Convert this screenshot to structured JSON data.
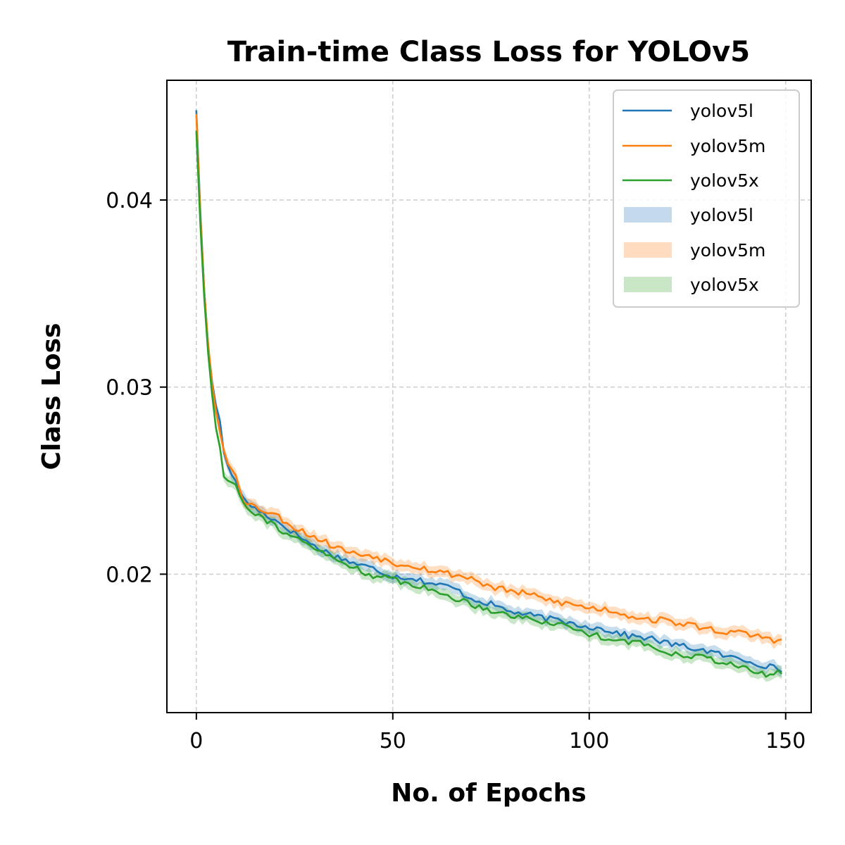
{
  "chart_data": {
    "type": "line",
    "title": "Train-time Class Loss for YOLOv5",
    "xlabel": "No. of Epochs",
    "ylabel": "Class Loss",
    "xlim": [
      -7.5,
      156.5
    ],
    "ylim": [
      0.0126,
      0.0464
    ],
    "xticks": [
      0,
      50,
      100,
      150
    ],
    "xtick_labels": [
      "0",
      "50",
      "100",
      "150"
    ],
    "yticks": [
      0.02,
      0.03,
      0.04
    ],
    "ytick_labels": [
      "0.02",
      "0.03",
      "0.04"
    ],
    "grid": true,
    "legend_position": "top-right",
    "band_width": 0.00035,
    "series": [
      {
        "name": "yolov5l",
        "color": "#1f77b4",
        "anchors": [
          [
            0,
            0.0448
          ],
          [
            1,
            0.0395
          ],
          [
            2,
            0.0352
          ],
          [
            3,
            0.0322
          ],
          [
            4,
            0.0303
          ],
          [
            5,
            0.029
          ],
          [
            6,
            0.0282
          ],
          [
            7,
            0.0265
          ],
          [
            8,
            0.0258
          ],
          [
            9,
            0.0253
          ],
          [
            10,
            0.025
          ],
          [
            12,
            0.024
          ],
          [
            15,
            0.0235
          ],
          [
            20,
            0.0229
          ],
          [
            25,
            0.0222
          ],
          [
            30,
            0.0215
          ],
          [
            35,
            0.021
          ],
          [
            40,
            0.0206
          ],
          [
            45,
            0.0203
          ],
          [
            50,
            0.0199
          ],
          [
            55,
            0.0198
          ],
          [
            60,
            0.0195
          ],
          [
            65,
            0.0193
          ],
          [
            70,
            0.0187
          ],
          [
            75,
            0.0184
          ],
          [
            80,
            0.018
          ],
          [
            85,
            0.0178
          ],
          [
            90,
            0.0176
          ],
          [
            95,
            0.0174
          ],
          [
            100,
            0.0172
          ],
          [
            105,
            0.017
          ],
          [
            110,
            0.0167
          ],
          [
            115,
            0.0166
          ],
          [
            120,
            0.0163
          ],
          [
            125,
            0.0161
          ],
          [
            130,
            0.0159
          ],
          [
            135,
            0.0156
          ],
          [
            140,
            0.0154
          ],
          [
            145,
            0.0151
          ],
          [
            149,
            0.0149
          ]
        ]
      },
      {
        "name": "yolov5m",
        "color": "#ff7f0e",
        "anchors": [
          [
            0,
            0.0446
          ],
          [
            1,
            0.0393
          ],
          [
            2,
            0.0352
          ],
          [
            3,
            0.0323
          ],
          [
            4,
            0.0302
          ],
          [
            5,
            0.0287
          ],
          [
            6,
            0.0276
          ],
          [
            7,
            0.0266
          ],
          [
            8,
            0.0259
          ],
          [
            9,
            0.0256
          ],
          [
            10,
            0.0253
          ],
          [
            12,
            0.024
          ],
          [
            15,
            0.0236
          ],
          [
            20,
            0.0232
          ],
          [
            25,
            0.0225
          ],
          [
            30,
            0.022
          ],
          [
            35,
            0.0215
          ],
          [
            40,
            0.0211
          ],
          [
            45,
            0.021
          ],
          [
            50,
            0.0206
          ],
          [
            55,
            0.0205
          ],
          [
            60,
            0.0202
          ],
          [
            65,
            0.02
          ],
          [
            70,
            0.0198
          ],
          [
            75,
            0.0193
          ],
          [
            80,
            0.0191
          ],
          [
            85,
            0.0189
          ],
          [
            90,
            0.0186
          ],
          [
            95,
            0.0184
          ],
          [
            100,
            0.0182
          ],
          [
            105,
            0.0181
          ],
          [
            110,
            0.0178
          ],
          [
            115,
            0.0176
          ],
          [
            120,
            0.0175
          ],
          [
            125,
            0.0173
          ],
          [
            130,
            0.0171
          ],
          [
            135,
            0.0169
          ],
          [
            140,
            0.0168
          ],
          [
            145,
            0.0166
          ],
          [
            149,
            0.0164
          ]
        ]
      },
      {
        "name": "yolov5x",
        "color": "#2ca02c",
        "anchors": [
          [
            0,
            0.0437
          ],
          [
            1,
            0.0388
          ],
          [
            2,
            0.0348
          ],
          [
            3,
            0.0318
          ],
          [
            4,
            0.0296
          ],
          [
            5,
            0.0278
          ],
          [
            6,
            0.0268
          ],
          [
            7,
            0.0252
          ],
          [
            8,
            0.025
          ],
          [
            9,
            0.0249
          ],
          [
            10,
            0.0248
          ],
          [
            12,
            0.0238
          ],
          [
            15,
            0.0233
          ],
          [
            20,
            0.0226
          ],
          [
            25,
            0.0219
          ],
          [
            30,
            0.0214
          ],
          [
            35,
            0.0208
          ],
          [
            40,
            0.0204
          ],
          [
            45,
            0.0199
          ],
          [
            50,
            0.0197
          ],
          [
            55,
            0.0195
          ],
          [
            60,
            0.0191
          ],
          [
            65,
            0.0188
          ],
          [
            70,
            0.0184
          ],
          [
            75,
            0.0181
          ],
          [
            80,
            0.0178
          ],
          [
            85,
            0.0176
          ],
          [
            90,
            0.0174
          ],
          [
            95,
            0.0172
          ],
          [
            100,
            0.0168
          ],
          [
            105,
            0.0166
          ],
          [
            110,
            0.0164
          ],
          [
            115,
            0.0162
          ],
          [
            120,
            0.0158
          ],
          [
            125,
            0.0157
          ],
          [
            130,
            0.0155
          ],
          [
            135,
            0.0153
          ],
          [
            140,
            0.0149
          ],
          [
            145,
            0.0146
          ],
          [
            149,
            0.0148
          ]
        ]
      }
    ],
    "legend": {
      "line_entries": [
        "yolov5l",
        "yolov5m",
        "yolov5x"
      ],
      "band_entries": [
        "yolov5l",
        "yolov5m",
        "yolov5x"
      ],
      "band_colors": [
        "#c4d9ec",
        "#ffdcbf",
        "#c9e6c6"
      ]
    }
  }
}
